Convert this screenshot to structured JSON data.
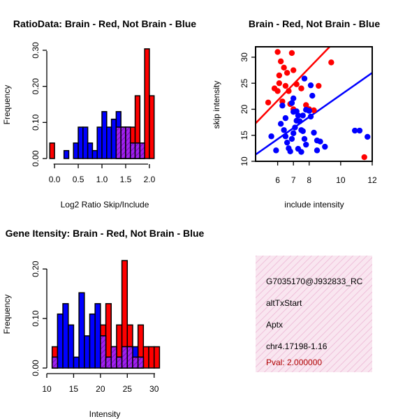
{
  "colors": {
    "red": "#ff0000",
    "blue": "#0000ff",
    "purple": "#a020f0",
    "black": "#000000",
    "panel_bg": "#f7dcec"
  },
  "chart_data": [
    {
      "id": "ratio_hist",
      "type": "bar",
      "title": "RatioData: Brain - Red, Not Brain - Blue",
      "xlabel": "Log2 Ratio Skip/Include",
      "ylabel": "Frequency",
      "xlim": [
        -0.1,
        2.2
      ],
      "ylim": [
        0,
        0.3
      ],
      "xticks": [
        "0.0",
        "0.5",
        "1.0",
        "1.5",
        "2.0"
      ],
      "xtick_values": [
        0,
        0.5,
        1.0,
        1.5,
        2.0
      ],
      "yticks": [
        "0.00",
        "0.10",
        "0.20",
        "0.30"
      ],
      "ytick_values": [
        0,
        0.1,
        0.2,
        0.3
      ],
      "bin_width": 0.1,
      "series": [
        {
          "name": "Not Brain",
          "color": "blue",
          "bins": [
            [
              0.2,
              0.3,
              0.022
            ],
            [
              0.4,
              0.5,
              0.043
            ],
            [
              0.5,
              0.6,
              0.087
            ],
            [
              0.6,
              0.7,
              0.087
            ],
            [
              0.7,
              0.8,
              0.043
            ],
            [
              0.8,
              0.9,
              0.022
            ],
            [
              0.9,
              1.0,
              0.087
            ],
            [
              1.0,
              1.1,
              0.13
            ],
            [
              1.1,
              1.2,
              0.087
            ],
            [
              1.2,
              1.3,
              0.109
            ],
            [
              1.3,
              1.4,
              0.13
            ],
            [
              1.4,
              1.5,
              0.087
            ],
            [
              1.5,
              1.6,
              0.087
            ],
            [
              1.6,
              1.7,
              0.043
            ],
            [
              1.7,
              1.8,
              0.043
            ],
            [
              1.8,
              1.9,
              0.043
            ]
          ]
        },
        {
          "name": "Brain",
          "color": "red",
          "bins": [
            [
              -0.1,
              0.0,
              0.043
            ],
            [
              1.3,
              1.4,
              0.087
            ],
            [
              1.4,
              1.5,
              0.087
            ],
            [
              1.5,
              1.6,
              0.087
            ],
            [
              1.6,
              1.7,
              0.087
            ],
            [
              1.7,
              1.8,
              0.174
            ],
            [
              1.8,
              1.9,
              0.043
            ],
            [
              1.9,
              2.0,
              0.304
            ],
            [
              2.0,
              2.1,
              0.174
            ]
          ]
        }
      ]
    },
    {
      "id": "scatter",
      "type": "scatter",
      "title": "Brain - Red, Not Brain - Blue",
      "xlabel": "include intensity",
      "ylabel": "skip intensity",
      "xlim": [
        4.6,
        12.0
      ],
      "ylim": [
        10,
        32
      ],
      "xticks": [
        "6",
        "7",
        "8",
        "10",
        "12"
      ],
      "xtick_values": [
        6,
        7,
        8,
        10,
        12
      ],
      "yticks": [
        "10",
        "15",
        "20",
        "25",
        "30"
      ],
      "ytick_values": [
        10,
        15,
        20,
        25,
        30
      ],
      "series": [
        {
          "name": "Brain",
          "color": "red",
          "points": [
            [
              6.0,
              31.0
            ],
            [
              6.2,
              29.2
            ],
            [
              6.4,
              28.0
            ],
            [
              6.6,
              27.0
            ],
            [
              6.9,
              30.8
            ],
            [
              7.0,
              27.5
            ],
            [
              6.5,
              24.5
            ],
            [
              6.7,
              23.5
            ],
            [
              7.2,
              24.8
            ],
            [
              7.5,
              24.0
            ],
            [
              6.8,
              21.0
            ],
            [
              7.0,
              20.0
            ],
            [
              7.8,
              20.8
            ],
            [
              8.0,
              20.0
            ],
            [
              8.3,
              19.8
            ],
            [
              8.6,
              24.5
            ],
            [
              9.4,
              29.0
            ],
            [
              11.5,
              10.8
            ],
            [
              6.3,
              21.5
            ],
            [
              6.1,
              25.0
            ],
            [
              6.0,
              23.5
            ],
            [
              5.8,
              24.0
            ],
            [
              6.1,
              26.5
            ],
            [
              5.4,
              21.3
            ]
          ]
        },
        {
          "name": "Not Brain",
          "color": "blue",
          "points": [
            [
              5.6,
              14.8
            ],
            [
              5.9,
              12.1
            ],
            [
              6.2,
              17.2
            ],
            [
              6.4,
              16.0
            ],
            [
              6.5,
              14.8
            ],
            [
              6.6,
              13.6
            ],
            [
              6.7,
              12.5
            ],
            [
              6.8,
              11.9
            ],
            [
              6.9,
              14.3
            ],
            [
              7.0,
              15.4
            ],
            [
              7.1,
              16.5
            ],
            [
              7.2,
              17.8
            ],
            [
              7.0,
              19.5
            ],
            [
              7.2,
              19.6
            ],
            [
              7.3,
              18.8
            ],
            [
              7.4,
              17.7
            ],
            [
              7.5,
              16.0
            ],
            [
              7.6,
              15.8
            ],
            [
              7.7,
              14.3
            ],
            [
              7.8,
              13.2
            ],
            [
              7.3,
              12.4
            ],
            [
              7.5,
              11.8
            ],
            [
              7.6,
              18.8
            ],
            [
              7.8,
              19.9
            ],
            [
              8.0,
              19.7
            ],
            [
              8.1,
              18.6
            ],
            [
              8.3,
              15.5
            ],
            [
              8.5,
              14.0
            ],
            [
              8.5,
              12.1
            ],
            [
              8.7,
              13.8
            ],
            [
              9.0,
              12.8
            ],
            [
              8.2,
              22.6
            ],
            [
              8.1,
              24.6
            ],
            [
              7.7,
              25.9
            ],
            [
              6.5,
              18.3
            ],
            [
              6.3,
              20.7
            ],
            [
              7.0,
              22.1
            ],
            [
              6.9,
              21.2
            ],
            [
              10.9,
              15.9
            ],
            [
              11.2,
              15.9
            ],
            [
              11.7,
              14.7
            ]
          ]
        }
      ],
      "fit_lines": [
        {
          "name": "Brain fit",
          "color": "red",
          "from": [
            4.6,
            17.3
          ],
          "to": [
            9.3,
            32.0
          ]
        },
        {
          "name": "Not Brain fit",
          "color": "blue",
          "from": [
            4.6,
            11.3
          ],
          "to": [
            12.0,
            27.0
          ]
        }
      ]
    },
    {
      "id": "intensity_hist",
      "type": "bar",
      "title": "Gene Itensity: Brain - Red, Not Brain - Blue",
      "xlabel": "Intensity",
      "ylabel": "Frequency",
      "xlim": [
        10,
        31
      ],
      "ylim": [
        0,
        0.22
      ],
      "xticks": [
        "10",
        "15",
        "20",
        "25",
        "30"
      ],
      "xtick_values": [
        10,
        15,
        20,
        25,
        30
      ],
      "yticks": [
        "0.00",
        "0.10",
        "0.20"
      ],
      "ytick_values": [
        0,
        0.1,
        0.2
      ],
      "bin_width": 1,
      "series": [
        {
          "name": "Not Brain",
          "color": "blue",
          "bins": [
            [
              11,
              12,
              0.022
            ],
            [
              12,
              13,
              0.109
            ],
            [
              13,
              14,
              0.13
            ],
            [
              14,
              15,
              0.087
            ],
            [
              15,
              16,
              0.022
            ],
            [
              16,
              17,
              0.152
            ],
            [
              17,
              18,
              0.065
            ],
            [
              18,
              19,
              0.109
            ],
            [
              19,
              20,
              0.13
            ],
            [
              20,
              21,
              0.065
            ],
            [
              21,
              22,
              0.022
            ],
            [
              22,
              23,
              0.043
            ],
            [
              23,
              24,
              0.022
            ],
            [
              24,
              25,
              0.043
            ],
            [
              25,
              26,
              0.043
            ],
            [
              26,
              27,
              0.043
            ],
            [
              27,
              28,
              0.022
            ]
          ]
        },
        {
          "name": "Brain",
          "color": "red",
          "bins": [
            [
              11,
              12,
              0.043
            ],
            [
              20,
              21,
              0.087
            ],
            [
              21,
              22,
              0.13
            ],
            [
              22,
              23,
              0.043
            ],
            [
              23,
              24,
              0.087
            ],
            [
              24,
              25,
              0.217
            ],
            [
              25,
              26,
              0.087
            ],
            [
              26,
              27,
              0.022
            ],
            [
              27,
              28,
              0.087
            ],
            [
              28,
              29,
              0.043
            ],
            [
              29,
              30,
              0.043
            ],
            [
              30,
              31,
              0.043
            ]
          ]
        }
      ]
    }
  ],
  "info_panel": {
    "probe_id": "G7035170@J932833_RC",
    "event_type": "altTxStart",
    "gene": "Aptx",
    "location": "chr4.17198-1.16",
    "pval": "Pval: 2.000000"
  }
}
